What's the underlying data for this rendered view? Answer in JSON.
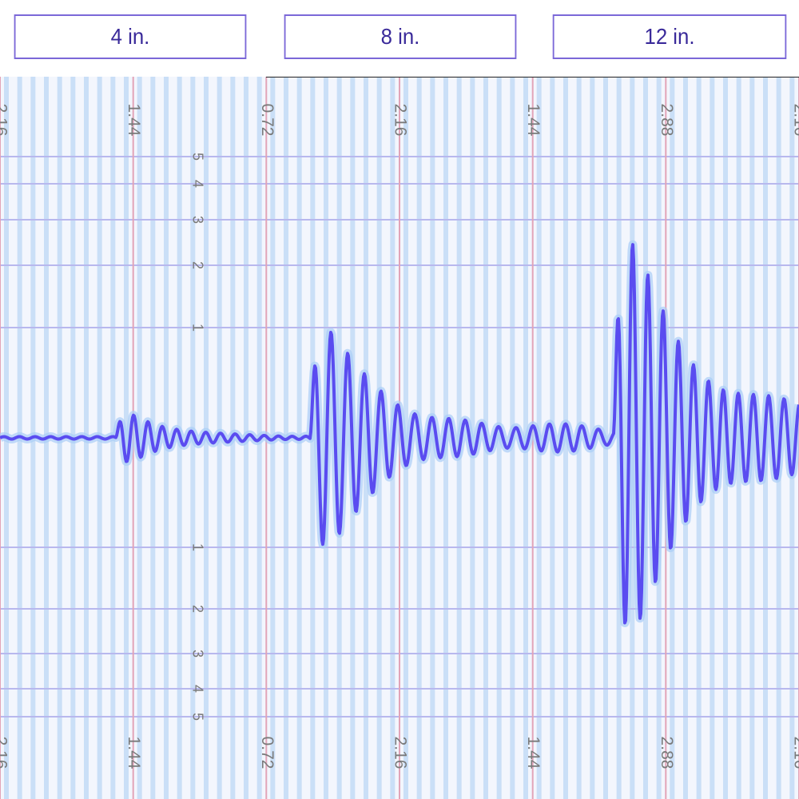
{
  "buttons": [
    "4 in.",
    "8 in.",
    "12 in."
  ],
  "time_labels": [
    "2.16",
    "1.44",
    "0.72",
    "2.16",
    "1.44",
    "2.88",
    "2.16"
  ],
  "scale_labels_upper": [
    "5",
    "4",
    "3",
    "2",
    "1"
  ],
  "scale_labels_lower": [
    "1",
    "2",
    "3",
    "4",
    "5"
  ]
}
